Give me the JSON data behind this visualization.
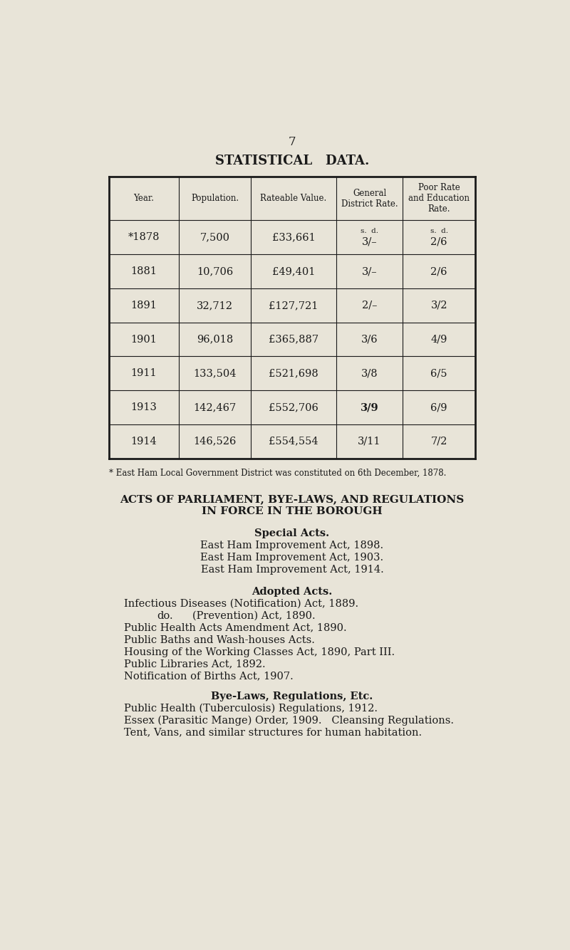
{
  "bg_color": "#e8e4d8",
  "page_number": "7",
  "title": "STATISTICAL   DATA.",
  "table_headers": [
    "Year.",
    "Population.",
    "Rateable Value.",
    "General\nDistrict Rate.",
    "Poor Rate\nand Education\nRate."
  ],
  "table_rows": [
    [
      "*1878",
      "7,500",
      "£33,661",
      "s.  d.\n3/–",
      "s.  d.\n2/6"
    ],
    [
      "1881",
      "10,706",
      "£49,401",
      "3/–",
      "2/6"
    ],
    [
      "1891",
      "32,712",
      "£127,721",
      "2/–",
      "3/2"
    ],
    [
      "1901",
      "96,018",
      "£365,887",
      "3/6",
      "4/9"
    ],
    [
      "1911",
      "133,504",
      "£521,698",
      "3/8",
      "6/5"
    ],
    [
      "1913",
      "142,467",
      "£552,706",
      "3/9",
      "6/9"
    ],
    [
      "1914",
      "146,526",
      "£554,554",
      "3/11",
      "7/2"
    ]
  ],
  "footnote": "* East Ham Local Government District was constituted on 6th December, 1878.",
  "section_title_line1": "ACTS OF PARLIAMENT, BYE-LAWS, AND REGULATIONS",
  "section_title_line2": "IN FORCE IN THE BOROUGH",
  "subsection1_title": "Special Acts.",
  "special_acts": [
    "East Ham Improvement Act, 1898.",
    "East Ham Improvement Act, 1903.",
    "East Ham Improvement Act, 1914."
  ],
  "subsection2_title": "Adopted Acts.",
  "adopted_acts_lines": [
    [
      "Infectious Diseases (Notification) Act, 1889.",
      null
    ],
    [
      "do.",
      "(Prevention) Act, 1890."
    ],
    [
      "Public Health Acts Amendment Act, 1890.",
      null
    ],
    [
      "Public Baths and Wash-houses Acts.",
      null
    ],
    [
      "Housing of the Working Classes Act, 1890, Part III.",
      null
    ],
    [
      "Public Libraries Act, 1892.",
      null
    ],
    [
      "Notification of Births Act, 1907.",
      null
    ]
  ],
  "subsection3_title": "Bye-Laws, Regulations, Etc.",
  "byelaws_lines": [
    "Public Health (Tuberculosis) Regulations, 1912.",
    "Essex (Parasitic Mange) Order, 1909.   Cleansing Regulations.",
    "Tent, Vans, and similar structures for human habitation."
  ],
  "text_color": "#1a1a1a",
  "table_line_color": "#1a1a1a"
}
